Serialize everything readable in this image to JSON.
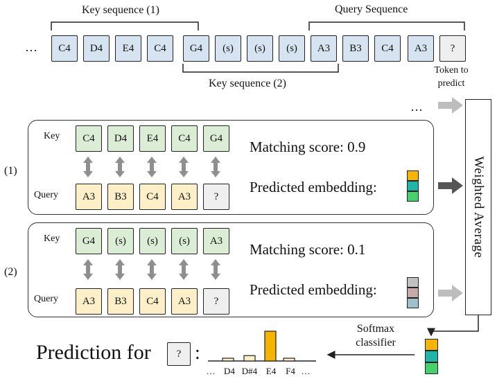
{
  "top": {
    "ellipsis_left": "…",
    "key_seq_1_label": "Key sequence (1)",
    "query_seq_label": "Query Sequence",
    "key_seq_2_label": "Key sequence (2)",
    "token_to_predict_label": "Token to predict",
    "tokens": [
      "C4",
      "D4",
      "E4",
      "C4",
      "G4",
      "(s)",
      "(s)",
      "(s)",
      "A3",
      "B3",
      "C4",
      "A3",
      "?"
    ]
  },
  "panel1": {
    "row_id": "(1)",
    "key_label": "Key",
    "query_label": "Query",
    "key_tokens": [
      "C4",
      "D4",
      "E4",
      "C4",
      "G4"
    ],
    "query_tokens": [
      "A3",
      "B3",
      "C4",
      "A3",
      "?"
    ],
    "matching_score": "Matching score: 0.9",
    "predicted_embedding": "Predicted embedding:",
    "embedding_colors": [
      "#f5b400",
      "#1fb5a8",
      "#47d16b"
    ]
  },
  "panel2": {
    "row_id": "(2)",
    "key_label": "Key",
    "query_label": "Query",
    "key_tokens": [
      "G4",
      "(s)",
      "(s)",
      "(s)",
      "A3"
    ],
    "query_tokens": [
      "A3",
      "B3",
      "C4",
      "A3",
      "?"
    ],
    "matching_score": "Matching score: 0.1",
    "predicted_embedding": "Predicted embedding:",
    "embedding_colors": [
      "#c1c1c1",
      "#c8aaa9",
      "#9cc1c8"
    ]
  },
  "ellipsis_right": "…",
  "weighted_average": "Weighted Average",
  "softmax_label": "Softmax classifier",
  "output_embedding_colors": [
    "#f5b400",
    "#1fb5a8",
    "#47d16b"
  ],
  "prediction": {
    "prefix": "Prediction for",
    "token": "?",
    "suffix": ":",
    "bar_categories": [
      "…",
      "D4",
      "D#4",
      "E4",
      "F4",
      "…"
    ],
    "bar_values": [
      0.08,
      0.18,
      1.0,
      0.08
    ],
    "bar_colors": [
      "#fdf0c8",
      "#fdf0c8",
      "#f5b400",
      "#fdf0c8"
    ]
  }
}
